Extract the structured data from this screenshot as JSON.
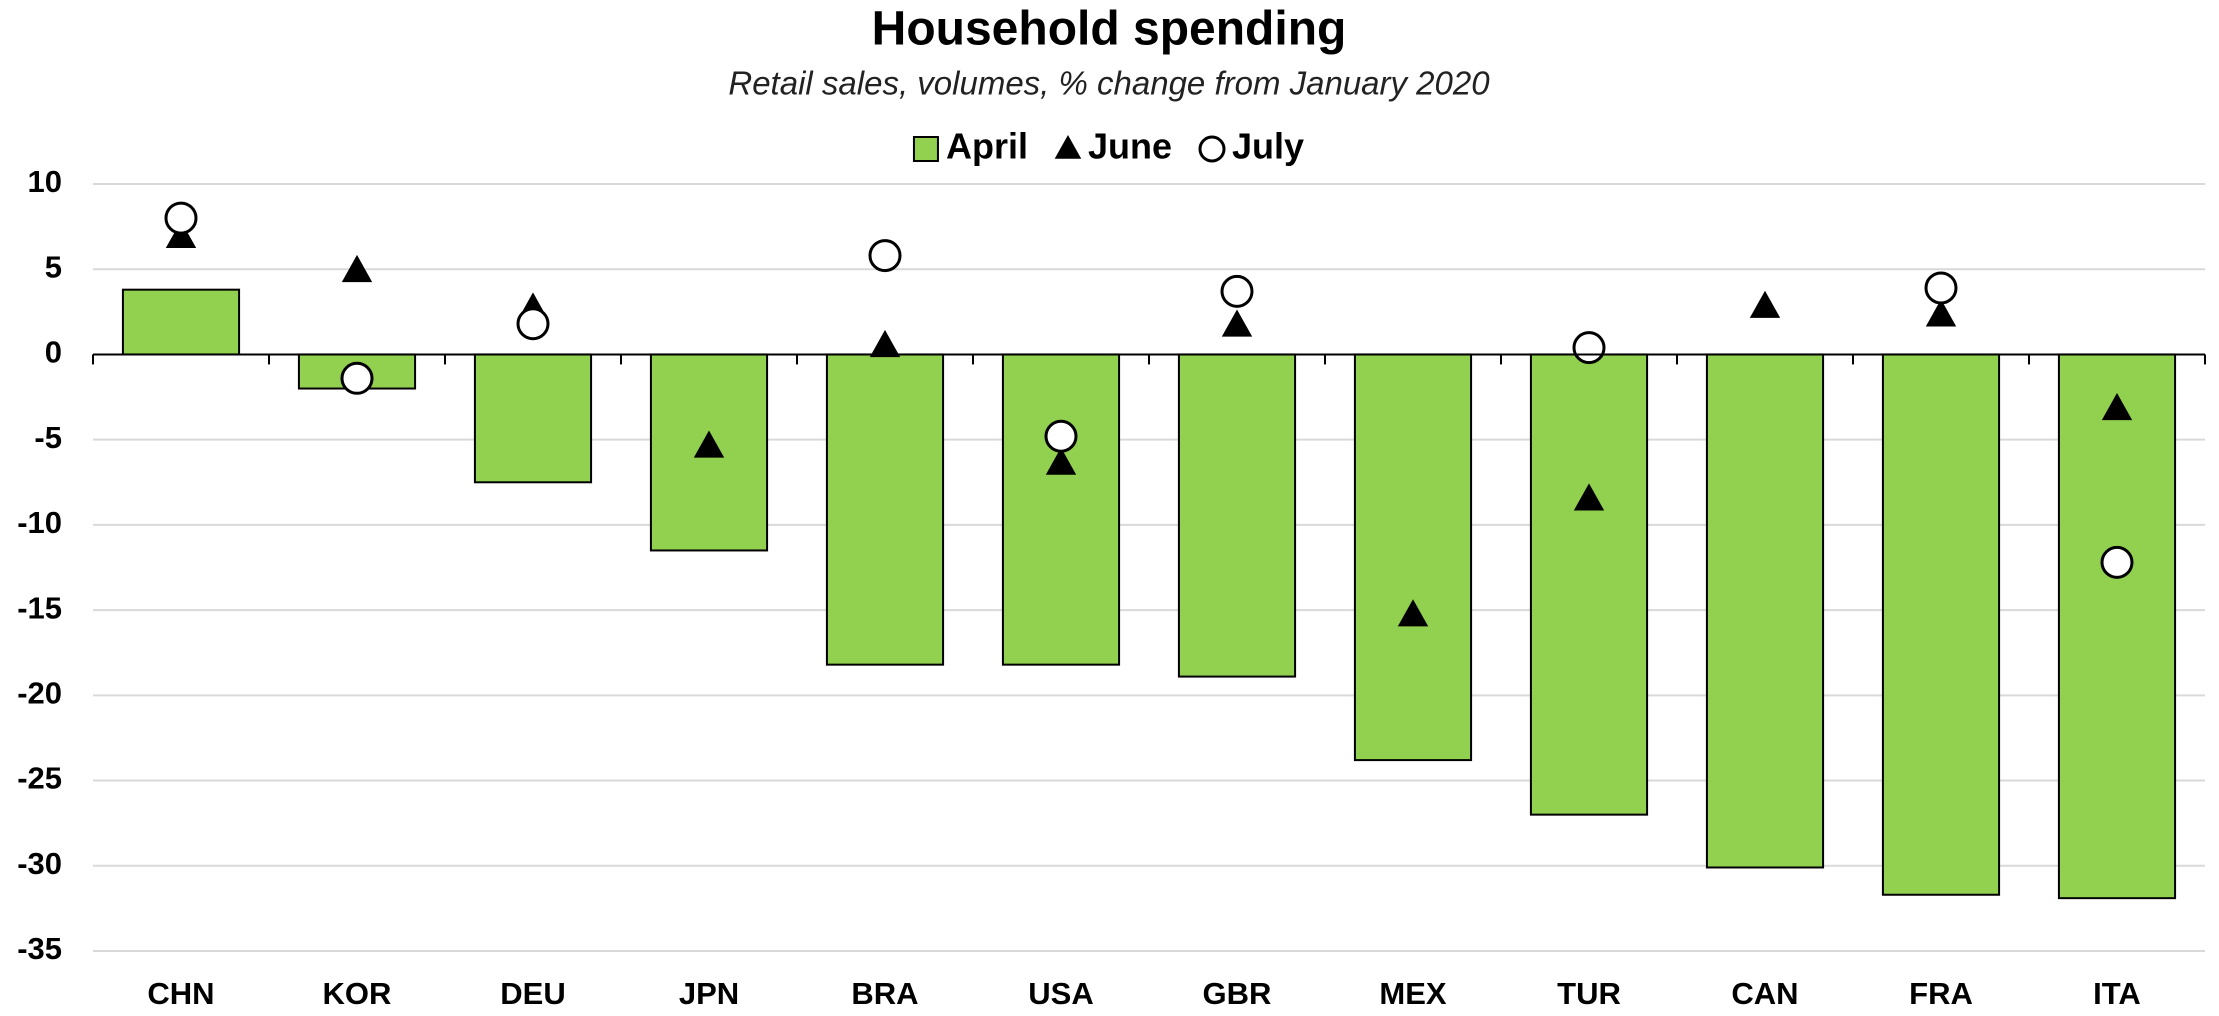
{
  "chart_data": {
    "type": "bar",
    "title": "Household spending",
    "subtitle": "Retail sales, volumes, % change from January 2020",
    "categories": [
      "CHN",
      "KOR",
      "DEU",
      "JPN",
      "BRA",
      "USA",
      "GBR",
      "MEX",
      "TUR",
      "CAN",
      "FRA",
      "ITA"
    ],
    "series": [
      {
        "name": "April",
        "color": "#92d050",
        "marker": "bar",
        "values": [
          3.8,
          -2.0,
          -7.5,
          -11.5,
          -18.2,
          -18.2,
          -18.9,
          -23.8,
          -27.0,
          -30.1,
          -31.7,
          -31.9
        ]
      },
      {
        "name": "June",
        "color": "#000000",
        "marker": "triangle",
        "values": [
          6.9,
          4.9,
          2.7,
          -5.4,
          0.5,
          -6.4,
          1.7,
          -15.3,
          -8.5,
          2.8,
          2.3,
          -3.2
        ]
      },
      {
        "name": "July",
        "color": "#ffffff",
        "marker": "circle",
        "values": [
          8.0,
          -1.4,
          1.8,
          null,
          5.8,
          -4.8,
          3.7,
          null,
          0.4,
          null,
          3.9,
          -12.2
        ]
      }
    ],
    "ylim": [
      -35,
      10
    ],
    "yticks": [
      -35,
      -30,
      -25,
      -20,
      -15,
      -10,
      -5,
      0,
      5,
      10
    ],
    "grid": true,
    "legend": "top"
  }
}
